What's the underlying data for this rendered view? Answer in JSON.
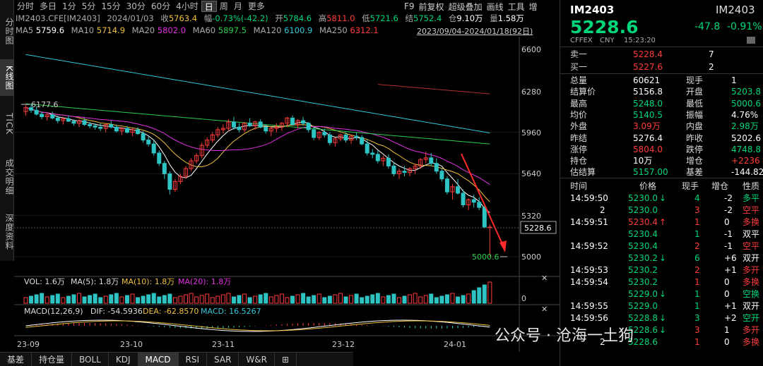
{
  "leftbar": [
    "分时图",
    "K线图",
    "TICK",
    "成交明细",
    "深度资料"
  ],
  "periods": [
    "分时",
    "多日",
    "1分",
    "5分",
    "15分",
    "30分",
    "60分",
    "4小时",
    "日",
    "周",
    "月",
    "更多"
  ],
  "active_period": "日",
  "tools": [
    "F9",
    "前复权",
    "超级叠加",
    "画线",
    "工具",
    "增"
  ],
  "info": {
    "code": "IM2403.CFE[IM2403]",
    "date": "2024/01/03",
    "close_label": "收",
    "close": "5763.4",
    "chg_label": "幅",
    "chg": "-0.73%(-42.2)",
    "open_label": "开",
    "open": "5784.6",
    "high_label": "高",
    "high": "5811.0",
    "low_label": "低",
    "low": "5721.6",
    "settle_label": "结",
    "settle": "5752.4",
    "oi_label": "仓",
    "oi": "9.10万",
    "vol_label": "量",
    "vol": "1.58万"
  },
  "ma": {
    "ma5": "MA5",
    "ma5v": "5759.6",
    "ma10": "MA10",
    "ma10v": "5714.9",
    "ma20": "MA20",
    "ma20v": "5802.0",
    "ma60": "MA60",
    "ma60v": "5897.5",
    "ma120": "MA120",
    "ma120v": "6100.9",
    "ma250": "MA250",
    "ma250v": "6312.1"
  },
  "range": "2023/09/04-2024/01/18(92日)",
  "price_axis": [
    "6600",
    "6280",
    "5960",
    "5640",
    "5320",
    "5000"
  ],
  "last_price_tag": "5228.6",
  "high_mark": "6177.6",
  "low_mark": "5000.6",
  "vol_line": {
    "vol": "VOL: 1.6万",
    "ma5": "MA(5): 1.8万",
    "ma10": "MA(10): 1.8万",
    "ma20": "MA(20): 1.8万"
  },
  "vol_axis": "0",
  "macd_line": {
    "title": "MACD(12,26,9)",
    "dif": "DIF: -54.5936",
    "dea": "DEA: -62.8570",
    "macd": "MACD: 16.5267"
  },
  "x_axis": [
    "23-09",
    "23-10",
    "23-11",
    "23-12",
    "24-01"
  ],
  "bottom_tabs": [
    "基差",
    "持仓量",
    "BOLL",
    "KDJ",
    "MACD",
    "RSI",
    "SAR",
    "W&R",
    "⊞"
  ],
  "active_tab": "MACD",
  "watermark": "公众号 · 沧海一土狗",
  "quote": {
    "symbol": "IM2403",
    "symbol2": "IM2403",
    "price": "5228.6",
    "chg": "-47.8",
    "pct": "-0.91%",
    "exch": "CFFEX",
    "cur": "CNY",
    "time": "15:23:20",
    "ask_label": "卖一",
    "ask": "5228.4",
    "ask_vol": "7",
    "bid_label": "买一",
    "bid": "5227.6",
    "bid_vol": "2",
    "stats": [
      [
        "总量",
        "60621",
        "现手",
        "1",
        "white",
        "white"
      ],
      [
        "结算价",
        "5156.8",
        "开盘",
        "5203.8",
        "white",
        "green"
      ],
      [
        "最高",
        "5248.0",
        "最低",
        "5000.6",
        "green",
        "green"
      ],
      [
        "均价",
        "5140.5",
        "振幅",
        "4.76%",
        "green",
        "white"
      ],
      [
        "外盘",
        "3.09万",
        "内盘",
        "2.98万",
        "red",
        "green"
      ],
      [
        "昨结",
        "5276.4",
        "昨收",
        "5202.6",
        "white",
        "white"
      ],
      [
        "涨停",
        "5804.0",
        "跌停",
        "4748.8",
        "red",
        "green"
      ],
      [
        "持仓",
        "10万",
        "增仓",
        "+2236",
        "white",
        "red"
      ],
      [
        "估结算",
        "5157.00",
        "基差",
        "-144.82",
        "green",
        "white"
      ]
    ],
    "tick_headers": [
      "时间",
      "价格",
      "现手",
      "增仓",
      "性质"
    ],
    "ticks": [
      [
        "14:59:50",
        "5230.0",
        "↓",
        "4",
        "-2",
        "多平",
        "green",
        "green"
      ],
      [
        "2",
        "5230.0",
        "",
        "3",
        "-2",
        "空平",
        "green",
        "red"
      ],
      [
        "14:59:51",
        "5230.4",
        "↑",
        "1",
        "0",
        "多换",
        "red",
        "red"
      ],
      [
        "",
        "5230.4",
        "",
        "1",
        "-1",
        "双平",
        "green",
        "white"
      ],
      [
        "14:59:52",
        "5230.4",
        "",
        "2",
        "-1",
        "空平",
        "green",
        "red"
      ],
      [
        "",
        "5230.2",
        "↓",
        "6",
        "+6",
        "双开",
        "green",
        "white"
      ],
      [
        "14:59:53",
        "5230.2",
        "",
        "2",
        "+1",
        "多开",
        "green",
        "red"
      ],
      [
        "14:59:54",
        "5230.2",
        "",
        "1",
        "0",
        "多换",
        "green",
        "red"
      ],
      [
        "",
        "5229.0",
        "↓",
        "1",
        "0",
        "空换",
        "green",
        "green"
      ],
      [
        "14:59:55",
        "5229.0",
        "",
        "1",
        "+1",
        "双开",
        "green",
        "white"
      ],
      [
        "14:59:56",
        "5228.8",
        "↓",
        "3",
        "+2",
        "空开",
        "green",
        "green"
      ],
      [
        "",
        "5228.6",
        "↓",
        "3",
        "1",
        "多开",
        "green",
        "red"
      ],
      [
        "2",
        "5228.6",
        "",
        "1",
        "0",
        "多换",
        "green",
        "red"
      ]
    ]
  }
}
